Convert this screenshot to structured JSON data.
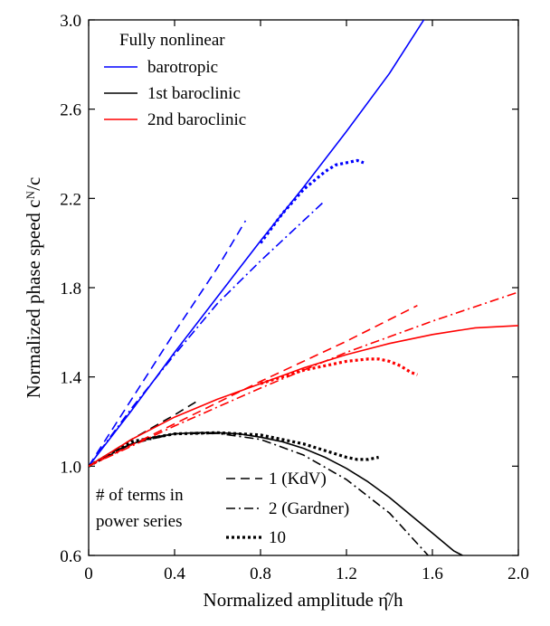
{
  "chart_data": {
    "type": "line",
    "xlabel": "Normalized amplitude η̂/h",
    "ylabel": "Normalized phase speed cᴺ/c",
    "xlim": [
      0,
      2.0
    ],
    "ylim": [
      0.6,
      3.0
    ],
    "x_ticks": [
      "0",
      "0.4",
      "0.8",
      "1.2",
      "1.6",
      "2.0"
    ],
    "y_ticks": [
      "0.6",
      "1.0",
      "1.4",
      "1.8",
      "2.2",
      "2.6",
      "3.0"
    ],
    "x_tick_values": [
      0,
      0.4,
      0.8,
      1.2,
      1.6,
      2.0
    ],
    "y_tick_values": [
      0.6,
      1.0,
      1.4,
      1.8,
      2.2,
      2.6,
      3.0
    ],
    "grid": false,
    "legend_color": {
      "title": "Fully nonlinear",
      "placement": "top-left",
      "entries": [
        {
          "label": "barotropic",
          "color": "#0000ff"
        },
        {
          "label": "1st baroclinic",
          "color": "#000000"
        },
        {
          "label": "2nd baroclinic",
          "color": "#ff0000"
        }
      ]
    },
    "legend_style": {
      "title_line1": "# of terms in",
      "title_line2": "power series",
      "placement": "bottom-left",
      "entries": [
        {
          "label": "1 (KdV)",
          "style": "dashed"
        },
        {
          "label": "2 (Gardner)",
          "style": "dashdot"
        },
        {
          "label": "10",
          "style": "dotted"
        }
      ]
    },
    "series": [
      {
        "mode": "barotropic",
        "style": "solid",
        "color": "#0000ff",
        "x": [
          0,
          0.2,
          0.4,
          0.6,
          0.8,
          1.0,
          1.2,
          1.4,
          1.56
        ],
        "y": [
          1.0,
          1.25,
          1.51,
          1.76,
          2.01,
          2.25,
          2.5,
          2.76,
          3.0
        ]
      },
      {
        "mode": "barotropic",
        "style": "dashed",
        "color": "#0000ff",
        "x": [
          0,
          0.2,
          0.4,
          0.6,
          0.73
        ],
        "y": [
          1.0,
          1.3,
          1.6,
          1.89,
          2.1
        ]
      },
      {
        "mode": "barotropic",
        "style": "dashdot",
        "color": "#0000ff",
        "x": [
          0,
          0.2,
          0.4,
          0.6,
          0.8,
          1.0,
          1.1
        ],
        "y": [
          1.0,
          1.26,
          1.5,
          1.73,
          1.92,
          2.1,
          2.19
        ]
      },
      {
        "mode": "barotropic",
        "style": "dotted",
        "color": "#0000ff",
        "x": [
          0.8,
          0.9,
          1.0,
          1.1,
          1.15,
          1.2,
          1.25,
          1.28
        ],
        "y": [
          2.0,
          2.13,
          2.24,
          2.32,
          2.35,
          2.36,
          2.37,
          2.36
        ]
      },
      {
        "mode": "1st baroclinic",
        "style": "solid",
        "color": "#000000",
        "x": [
          0,
          0.1,
          0.2,
          0.3,
          0.4,
          0.5,
          0.6,
          0.7,
          0.8,
          0.9,
          1.0,
          1.1,
          1.2,
          1.3,
          1.4,
          1.5,
          1.6,
          1.7,
          1.74
        ],
        "y": [
          1.0,
          1.06,
          1.1,
          1.13,
          1.145,
          1.15,
          1.15,
          1.145,
          1.13,
          1.11,
          1.08,
          1.04,
          0.99,
          0.93,
          0.86,
          0.78,
          0.7,
          0.62,
          0.6
        ]
      },
      {
        "mode": "1st baroclinic",
        "style": "dashed",
        "color": "#000000",
        "x": [
          0,
          0.2,
          0.4,
          0.52
        ],
        "y": [
          1.0,
          1.12,
          1.23,
          1.3
        ]
      },
      {
        "mode": "1st baroclinic",
        "style": "dashdot",
        "color": "#000000",
        "x": [
          0,
          0.2,
          0.4,
          0.6,
          0.8,
          1.0,
          1.2,
          1.4,
          1.58
        ],
        "y": [
          1.0,
          1.1,
          1.146,
          1.147,
          1.12,
          1.05,
          0.94,
          0.79,
          0.6
        ]
      },
      {
        "mode": "1st baroclinic",
        "style": "dotted",
        "color": "#000000",
        "x": [
          0,
          0.2,
          0.4,
          0.6,
          0.8,
          1.0,
          1.1,
          1.2,
          1.25,
          1.3,
          1.35
        ],
        "y": [
          1.0,
          1.11,
          1.145,
          1.15,
          1.14,
          1.1,
          1.07,
          1.04,
          1.03,
          1.03,
          1.04
        ]
      },
      {
        "mode": "2nd baroclinic",
        "style": "solid",
        "color": "#ff0000",
        "x": [
          0,
          0.2,
          0.4,
          0.6,
          0.8,
          1.0,
          1.2,
          1.4,
          1.6,
          1.8,
          2.0
        ],
        "y": [
          1.0,
          1.12,
          1.22,
          1.3,
          1.37,
          1.44,
          1.5,
          1.55,
          1.59,
          1.62,
          1.63
        ]
      },
      {
        "mode": "2nd baroclinic",
        "style": "dashed",
        "color": "#ff0000",
        "x": [
          0,
          0.4,
          0.8,
          1.2,
          1.53
        ],
        "y": [
          1.0,
          1.19,
          1.38,
          1.56,
          1.72
        ]
      },
      {
        "mode": "2nd baroclinic",
        "style": "dashdot",
        "color": "#ff0000",
        "x": [
          0,
          0.4,
          0.8,
          1.2,
          1.6,
          2.0
        ],
        "y": [
          1.0,
          1.18,
          1.35,
          1.51,
          1.65,
          1.78
        ]
      },
      {
        "mode": "2nd baroclinic",
        "style": "dotted",
        "color": "#ff0000",
        "x": [
          0.8,
          1.0,
          1.1,
          1.2,
          1.3,
          1.35,
          1.4,
          1.45,
          1.5,
          1.53
        ],
        "y": [
          1.37,
          1.43,
          1.45,
          1.47,
          1.48,
          1.48,
          1.47,
          1.45,
          1.42,
          1.41
        ]
      }
    ]
  }
}
